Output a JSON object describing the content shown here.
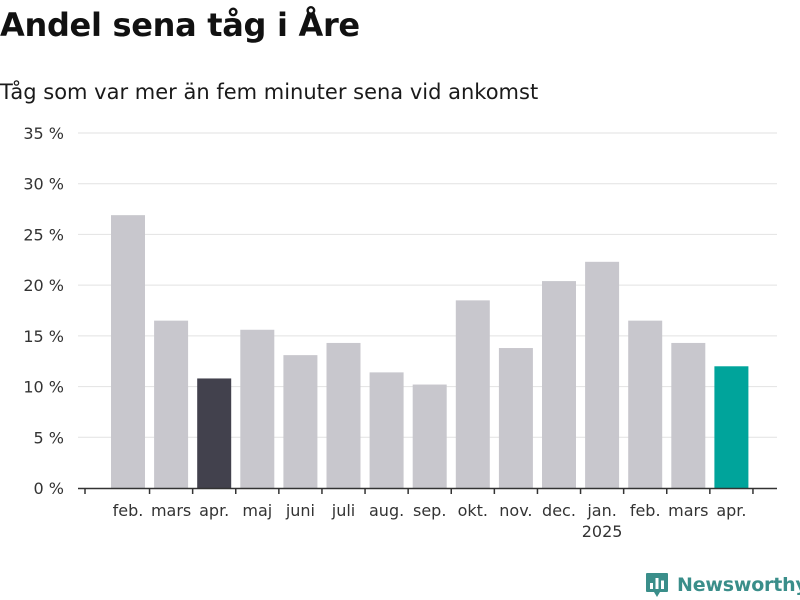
{
  "title": "Andel sena tåg i Åre",
  "subtitle": "Tåg som var mer än fem minuter sena vid ankomst",
  "brand": {
    "name": "Newsworthy",
    "color": "#3a8e8a",
    "icon": "newsworthy-logo-icon"
  },
  "chart_data": {
    "type": "bar",
    "title": "Andel sena tåg i Åre",
    "subtitle": "Tåg som var mer än fem minuter sena vid ankomst",
    "categories": [
      "feb.",
      "mars",
      "apr.",
      "maj",
      "juni",
      "juli",
      "aug.",
      "sep.",
      "okt.",
      "nov.",
      "dec.",
      "jan.",
      "feb.",
      "mars",
      "apr."
    ],
    "year_labels": [
      {
        "category_index": 11,
        "label": "2025"
      }
    ],
    "values": [
      26.9,
      16.5,
      10.8,
      15.6,
      13.1,
      14.3,
      11.4,
      10.2,
      18.5,
      13.8,
      20.4,
      22.3,
      16.5,
      14.3,
      12.0
    ],
    "bar_colors": [
      "#c8c7cd",
      "#c8c7cd",
      "#42414d",
      "#c8c7cd",
      "#c8c7cd",
      "#c8c7cd",
      "#c8c7cd",
      "#c8c7cd",
      "#c8c7cd",
      "#c8c7cd",
      "#c8c7cd",
      "#c8c7cd",
      "#c8c7cd",
      "#c8c7cd",
      "#00a49b"
    ],
    "yticks": [
      "0 %",
      "5 %",
      "10 %",
      "15 %",
      "20 %",
      "25 %",
      "30 %",
      "35 %"
    ],
    "ytick_values": [
      0,
      5,
      10,
      15,
      20,
      25,
      30,
      35
    ],
    "ylim": [
      0,
      35
    ],
    "xlabel": "",
    "ylabel": "",
    "grid": true,
    "legend": "none",
    "colors": {
      "bar_default": "#c8c7cd",
      "bar_reference": "#42414d",
      "bar_highlight": "#00a49b",
      "gridline": "#e2e2e2",
      "axis": "#333333"
    }
  }
}
